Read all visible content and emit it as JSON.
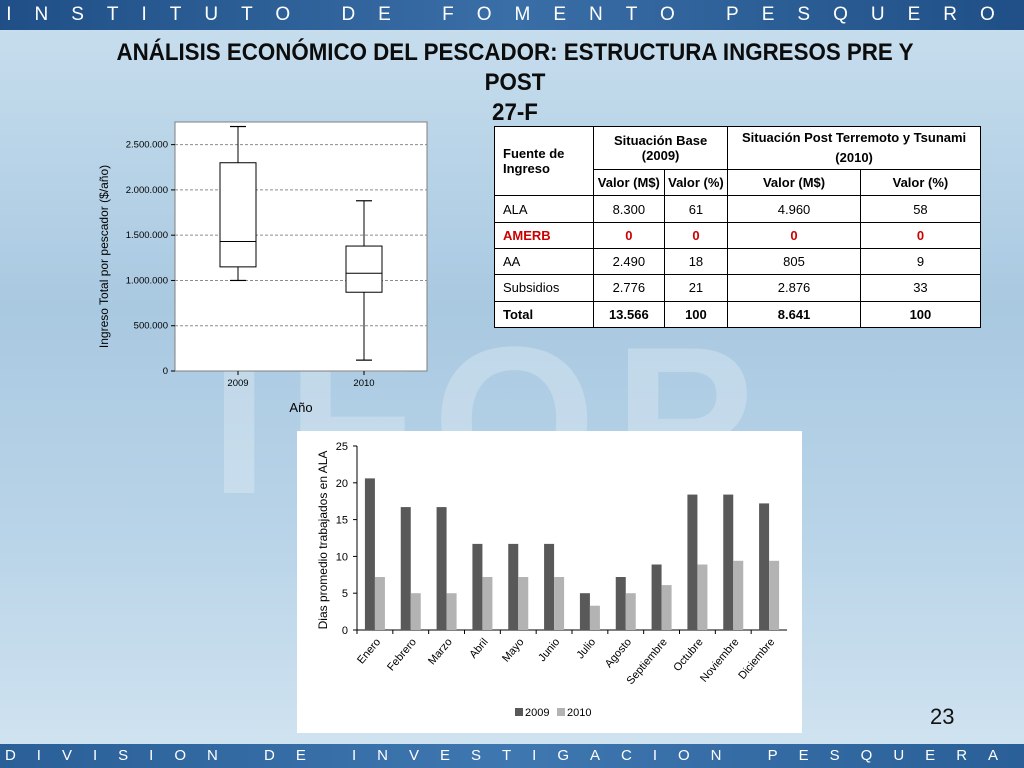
{
  "header": {
    "institute": "INSTITUTO DE FOMENTO PESQUERO",
    "division": "DIVISION DE INVESTIGACION PESQUERA",
    "watermark": "IFOP"
  },
  "slide": {
    "title_line1": "ANÁLISIS ECONÓMICO DEL PESCADOR: ESTRUCTURA INGRESOS PRE Y POST",
    "title_line2": "27-F",
    "page_number": "23"
  },
  "table": {
    "col_source": "Fuente de Ingreso",
    "group_base": "Situación Base (2009)",
    "group_post": "Situación Post Terremoto y Tsunami (2010)",
    "sub_headers": [
      "Valor (M$)",
      "Valor (%)",
      "Valor (M$)",
      "Valor (%)"
    ],
    "rows": [
      {
        "name": "ALA",
        "v2009": "8.300",
        "p2009": "61",
        "v2010": "4.960",
        "p2010": "58"
      },
      {
        "name": "AMERB",
        "v2009": "0",
        "p2009": "0",
        "v2010": "0",
        "p2010": "0"
      },
      {
        "name": "AA",
        "v2009": "2.490",
        "p2009": "18",
        "v2010": "805",
        "p2010": "9"
      },
      {
        "name": "Subsidios",
        "v2009": "2.776",
        "p2009": "21",
        "v2010": "2.876",
        "p2010": "33"
      },
      {
        "name": "Total",
        "v2009": "13.566",
        "p2009": "100",
        "v2010": "8.641",
        "p2010": "100"
      }
    ],
    "highlight_color": "#cc0000"
  },
  "chart_data": [
    {
      "type": "boxplot",
      "title": "",
      "xlabel": "Año",
      "ylabel": "Ingreso Total por pescador ($/año)",
      "ylim": [
        0,
        2750000
      ],
      "yticks": [
        0,
        500000,
        1000000,
        1500000,
        2000000,
        2500000
      ],
      "ytick_labels": [
        "0",
        "500.000",
        "1.000.000",
        "1.500.000",
        "2.000.000",
        "2.500.000"
      ],
      "grid": true,
      "categories": [
        "2009",
        "2010"
      ],
      "boxes": [
        {
          "min": 1000000,
          "q1": 1150000,
          "median": 1430000,
          "q3": 2300000,
          "max": 2700000
        },
        {
          "min": 120000,
          "q1": 870000,
          "median": 1080000,
          "q3": 1380000,
          "max": 1880000
        }
      ]
    },
    {
      "type": "bar",
      "title": "",
      "xlabel": "",
      "ylabel": "Dias promedio trabajados en ALA",
      "ylim": [
        0,
        25
      ],
      "yticks": [
        0,
        5,
        10,
        15,
        20,
        25
      ],
      "categories": [
        "Enero",
        "Febrero",
        "Marzo",
        "Abril",
        "Mayo",
        "Junio",
        "Julio",
        "Agosto",
        "Septiembre",
        "Octubre",
        "Noviembre",
        "Diciembre"
      ],
      "series": [
        {
          "name": "2009",
          "color": "#595959",
          "values": [
            20.6,
            16.7,
            16.7,
            11.7,
            11.7,
            11.7,
            5.0,
            7.2,
            8.9,
            18.4,
            18.4,
            17.2
          ]
        },
        {
          "name": "2010",
          "color": "#b3b3b3",
          "values": [
            7.2,
            5.0,
            5.0,
            7.2,
            7.2,
            7.2,
            3.3,
            5.0,
            6.1,
            8.9,
            9.4,
            9.4
          ]
        }
      ],
      "legend": "bottom"
    }
  ]
}
